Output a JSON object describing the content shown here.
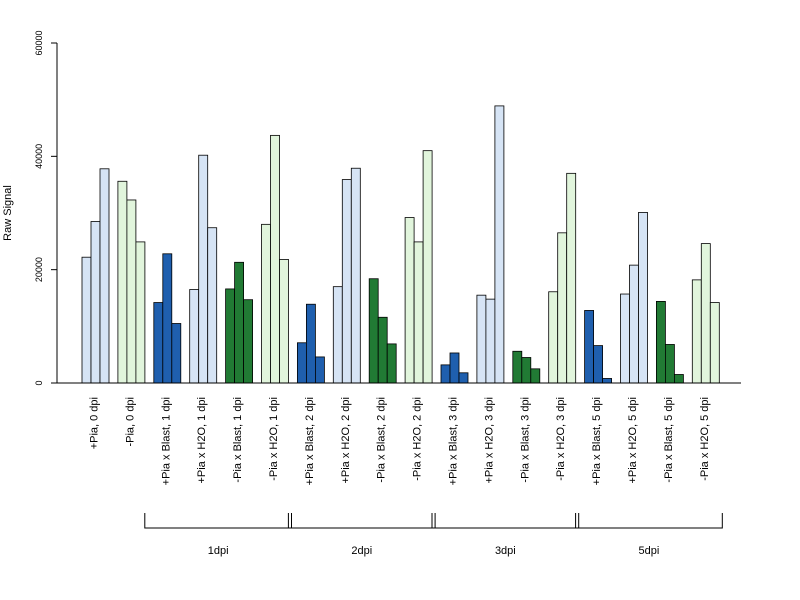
{
  "chart_data": {
    "type": "bar",
    "ylabel": "Raw Signal",
    "xlabel": "",
    "title": "",
    "ylim": [
      0,
      60000
    ],
    "yticks": [
      0,
      20000,
      40000,
      60000
    ],
    "grid": false,
    "colors": {
      "light_blue": "#d6e4f5",
      "dark_blue": "#1f5fae",
      "light_green": "#e1f5dc",
      "dark_green": "#217a34"
    },
    "categories": [
      {
        "label": "+Pia, 0 dpi",
        "color": "#d6e4f5",
        "values": [
          22200,
          28500,
          37800
        ]
      },
      {
        "label": "-Pia, 0 dpi",
        "color": "#e1f5dc",
        "values": [
          35600,
          32300,
          24900
        ]
      },
      {
        "label": "+Pia x Blast, 1 dpi",
        "color": "#1f5fae",
        "values": [
          14200,
          22800,
          10500
        ]
      },
      {
        "label": "+Pia x H2O, 1 dpi",
        "color": "#d6e4f5",
        "values": [
          16500,
          40200,
          27400
        ]
      },
      {
        "label": "-Pia x Blast, 1 dpi",
        "color": "#217a34",
        "values": [
          16600,
          21300,
          14700
        ]
      },
      {
        "label": "-Pia x H2O, 1 dpi",
        "color": "#e1f5dc",
        "values": [
          28000,
          43700,
          21800
        ]
      },
      {
        "label": "+Pia x Blast, 2 dpi",
        "color": "#1f5fae",
        "values": [
          7100,
          13900,
          4600
        ]
      },
      {
        "label": "+Pia x H2O, 2 dpi",
        "color": "#d6e4f5",
        "values": [
          17000,
          35900,
          37900
        ]
      },
      {
        "label": "-Pia x Blast, 2 dpi",
        "color": "#217a34",
        "values": [
          18400,
          11600,
          6900
        ]
      },
      {
        "label": "-Pia x H2O, 2 dpi",
        "color": "#e1f5dc",
        "values": [
          29200,
          24900,
          41000
        ]
      },
      {
        "label": "+Pia x Blast, 3 dpi",
        "color": "#1f5fae",
        "values": [
          3200,
          5300,
          1800
        ]
      },
      {
        "label": "+Pia x H2O, 3 dpi",
        "color": "#d6e4f5",
        "values": [
          15500,
          14800,
          48900
        ]
      },
      {
        "label": "-Pia x Blast, 3 dpi",
        "color": "#217a34",
        "values": [
          5600,
          4500,
          2500
        ]
      },
      {
        "label": "-Pia x H2O, 3 dpi",
        "color": "#e1f5dc",
        "values": [
          16100,
          26500,
          37000
        ]
      },
      {
        "label": "+Pia x Blast, 5 dpi",
        "color": "#1f5fae",
        "values": [
          12800,
          6600,
          800
        ]
      },
      {
        "label": "+Pia x H2O, 5 dpi",
        "color": "#d6e4f5",
        "values": [
          15700,
          20800,
          30100
        ]
      },
      {
        "label": "-Pia x Blast, 5 dpi",
        "color": "#217a34",
        "values": [
          14400,
          6800,
          1500
        ]
      },
      {
        "label": "-Pia x H2O, 5 dpi",
        "color": "#e1f5dc",
        "values": [
          18200,
          24600,
          14200
        ]
      }
    ],
    "groups": [
      {
        "label": "1dpi",
        "first": 2,
        "last": 5
      },
      {
        "label": "2dpi",
        "first": 6,
        "last": 9
      },
      {
        "label": "3dpi",
        "first": 10,
        "last": 13
      },
      {
        "label": "5dpi",
        "first": 14,
        "last": 17
      }
    ]
  }
}
